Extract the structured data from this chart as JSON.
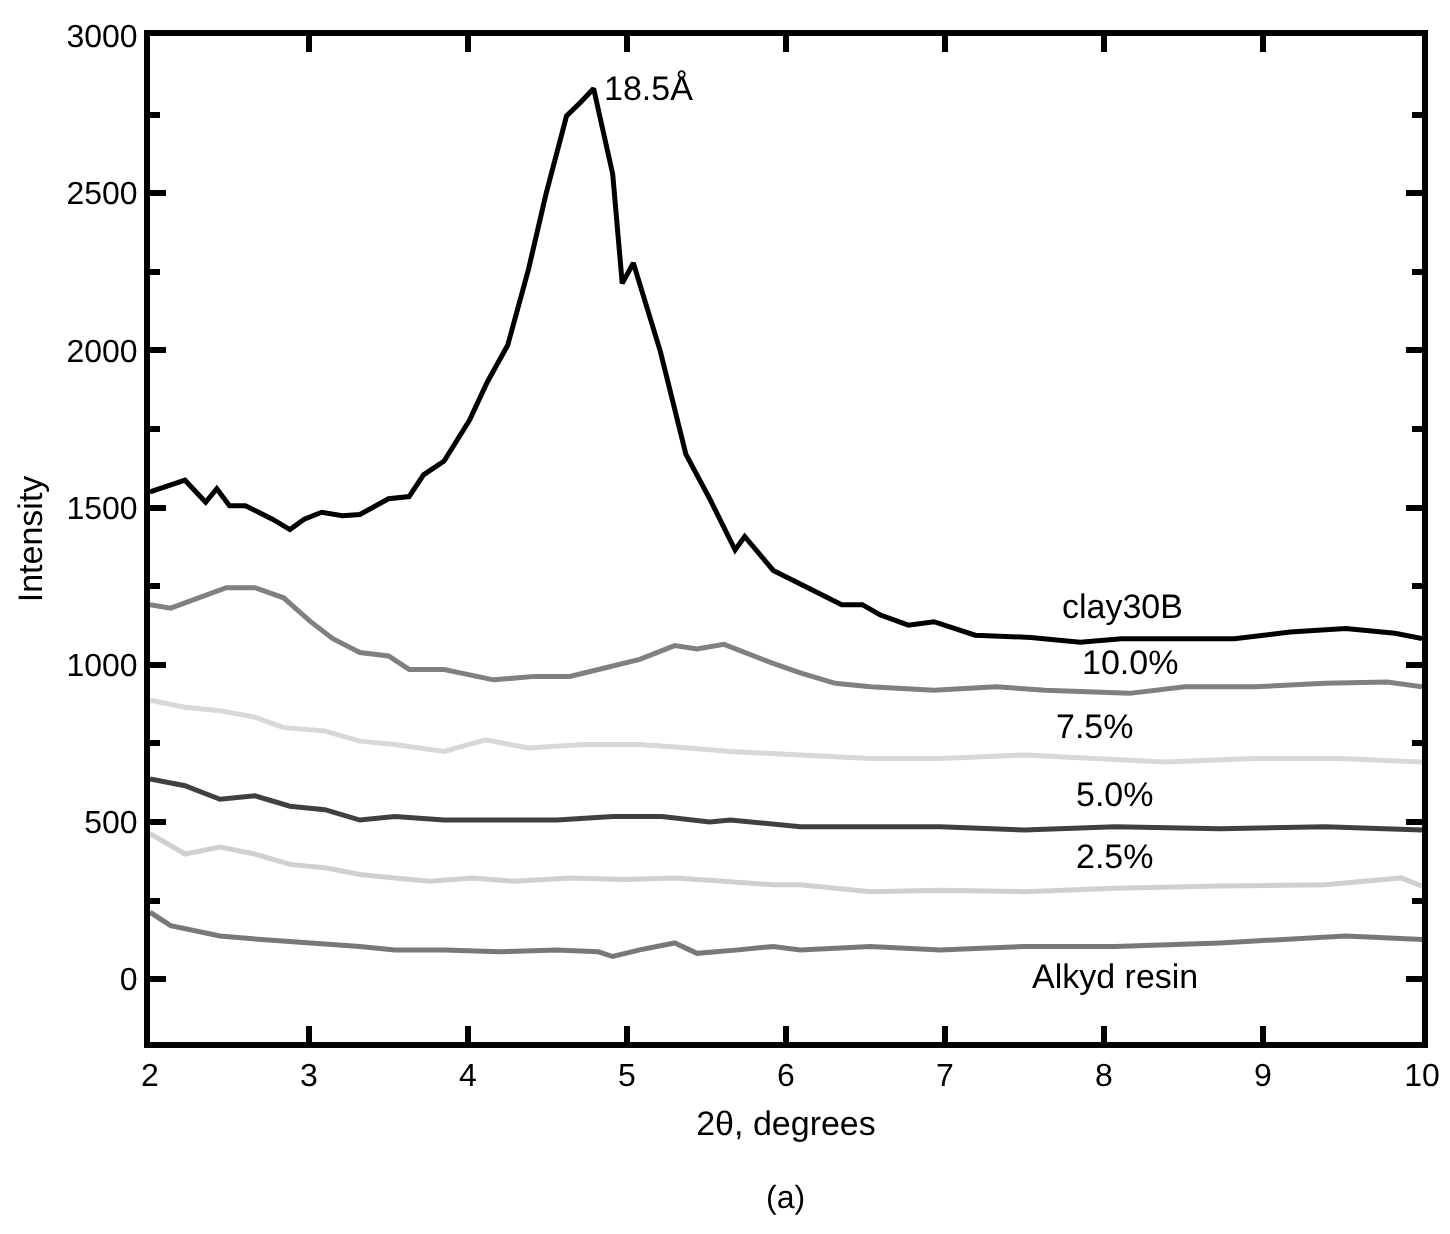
{
  "chart_data": {
    "type": "line",
    "xlabel": "2θ, degrees",
    "ylabel": "Intensity",
    "xlim": [
      2,
      10
    ],
    "ylim": [
      -200,
      3000
    ],
    "xticks": [
      2,
      3,
      4,
      5,
      6,
      7,
      8,
      9,
      10
    ],
    "yticks": [
      0,
      500,
      1000,
      1500,
      2000,
      2500,
      3000
    ],
    "grid": false,
    "legend": false,
    "marker": "none",
    "line_style": "solid",
    "annotations": [
      {
        "text": "18.5Å",
        "x": 4.79,
        "y": 2833
      },
      "(a)"
    ],
    "series": [
      {
        "name": "clay30B",
        "color": "#000000",
        "x": [
          2,
          2.22,
          2.35,
          2.42,
          2.5,
          2.6,
          2.77,
          2.88,
          2.97,
          3.08,
          3.21,
          3.32,
          3.5,
          3.63,
          3.72,
          3.85,
          4.01,
          4.12,
          4.25,
          4.38,
          4.49,
          4.62,
          4.71,
          4.79,
          4.91,
          4.97,
          5.04,
          5.21,
          5.37,
          5.52,
          5.68,
          5.74,
          5.92,
          6.09,
          6.35,
          6.48,
          6.59,
          6.77,
          6.93,
          7.19,
          7.54,
          7.85,
          8.11,
          8.51,
          8.82,
          9.17,
          9.52,
          9.83,
          10
        ],
        "values": [
          1550,
          1587,
          1517,
          1560,
          1506,
          1506,
          1463,
          1430,
          1463,
          1485,
          1474,
          1478,
          1528,
          1535,
          1604,
          1648,
          1778,
          1898,
          2017,
          2257,
          2496,
          2746,
          2790,
          2833,
          2561,
          2213,
          2278,
          1996,
          1670,
          1528,
          1365,
          1408,
          1300,
          1257,
          1191,
          1191,
          1159,
          1126,
          1137,
          1094,
          1087,
          1072,
          1083,
          1083,
          1083,
          1104,
          1115,
          1100,
          1083
        ]
      },
      {
        "name": "10.0%",
        "color": "#808080",
        "x": [
          2,
          2.13,
          2.48,
          2.66,
          2.84,
          3.01,
          3.15,
          3.32,
          3.5,
          3.63,
          3.85,
          4.16,
          4.42,
          4.64,
          4.82,
          5.08,
          5.3,
          5.44,
          5.61,
          5.91,
          6.09,
          6.31,
          6.53,
          6.93,
          7.32,
          7.63,
          8.16,
          8.51,
          8.95,
          9.39,
          9.78,
          10
        ],
        "values": [
          1191,
          1180,
          1245,
          1245,
          1213,
          1137,
          1083,
          1039,
          1028,
          985,
          985,
          952,
          963,
          963,
          985,
          1017,
          1061,
          1050,
          1065,
          1006,
          974,
          941,
          930,
          919,
          930,
          919,
          909,
          930,
          930,
          941,
          945,
          930
        ]
      },
      {
        "name": "7.5%",
        "color": "#d8d8d8",
        "x": [
          2,
          2.22,
          2.44,
          2.66,
          2.84,
          3.1,
          3.32,
          3.54,
          3.85,
          4.11,
          4.38,
          4.73,
          5.08,
          5.39,
          5.65,
          6.09,
          6.53,
          6.97,
          7.5,
          7.94,
          8.38,
          8.95,
          9.48,
          10
        ],
        "values": [
          887,
          865,
          854,
          833,
          800,
          789,
          757,
          746,
          724,
          761,
          735,
          746,
          746,
          735,
          724,
          713,
          702,
          702,
          713,
          702,
          691,
          702,
          702,
          691
        ]
      },
      {
        "name": "5.0%",
        "color": "#404040",
        "x": [
          2,
          2.22,
          2.44,
          2.66,
          2.88,
          3.1,
          3.32,
          3.54,
          3.85,
          4.2,
          4.56,
          4.91,
          5.22,
          5.52,
          5.65,
          6.09,
          6.53,
          6.97,
          7.5,
          8.07,
          8.73,
          9.39,
          10
        ],
        "values": [
          637,
          615,
          572,
          583,
          550,
          539,
          506,
          517,
          506,
          506,
          506,
          517,
          517,
          500,
          506,
          485,
          485,
          485,
          474,
          485,
          478,
          485,
          474
        ]
      },
      {
        "name": "2.5%",
        "color": "#d0d0d0",
        "x": [
          2,
          2.22,
          2.44,
          2.66,
          2.88,
          3.1,
          3.32,
          3.54,
          3.76,
          4.03,
          4.29,
          4.64,
          4.99,
          5.3,
          5.61,
          5.92,
          6.09,
          6.53,
          6.97,
          7.5,
          8.07,
          8.73,
          9.39,
          9.87,
          10
        ],
        "values": [
          463,
          398,
          420,
          398,
          365,
          354,
          333,
          322,
          311,
          322,
          311,
          322,
          317,
          322,
          311,
          300,
          300,
          278,
          283,
          278,
          289,
          296,
          300,
          322,
          296
        ]
      },
      {
        "name": "Alkyd resin",
        "color": "#787878",
        "x": [
          2,
          2.13,
          2.44,
          2.7,
          3.01,
          3.32,
          3.54,
          3.85,
          4.2,
          4.56,
          4.82,
          4.91,
          5.08,
          5.3,
          5.44,
          5.7,
          5.92,
          6.09,
          6.53,
          6.97,
          7.5,
          8.07,
          8.73,
          9.52,
          9.83,
          10
        ],
        "values": [
          213,
          170,
          137,
          126,
          115,
          104,
          93,
          93,
          87,
          93,
          87,
          72,
          93,
          115,
          82,
          93,
          104,
          93,
          104,
          93,
          104,
          104,
          115,
          137,
          130,
          126
        ]
      }
    ]
  }
}
